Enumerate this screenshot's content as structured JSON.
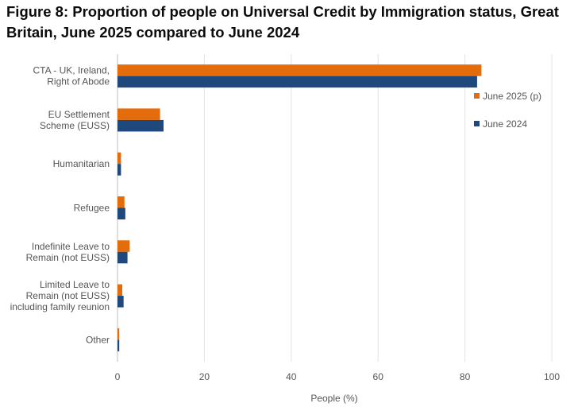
{
  "chart_data": {
    "type": "bar",
    "orientation": "horizontal",
    "title": "Figure 8: Proportion of people on Universal Credit by Immigration status, Great Britain, June 2025 compared to June 2024",
    "xlabel": "People (%)",
    "ylabel": "",
    "xlim": [
      0,
      100
    ],
    "xticks": [
      "0",
      "20",
      "40",
      "60",
      "80",
      "100"
    ],
    "grid": "vertical",
    "legend_position": "right",
    "categories": [
      [
        "CTA - UK, Ireland,",
        "Right of Abode"
      ],
      [
        "EU Settlement",
        "Scheme (EUSS)"
      ],
      [
        "Humanitarian"
      ],
      [
        "Refugee"
      ],
      [
        "Indefinite Leave to",
        "Remain (not EUSS)"
      ],
      [
        "Limited Leave to",
        "Remain (not EUSS)",
        "including family reunion"
      ],
      [
        "Other"
      ]
    ],
    "series": [
      {
        "name": "June 2025 (p)",
        "color": "#e46c0a",
        "values": [
          83.8,
          9.8,
          0.8,
          1.6,
          2.8,
          1.1,
          0.4
        ]
      },
      {
        "name": "June 2024",
        "color": "#1f497d",
        "values": [
          82.8,
          10.6,
          0.8,
          1.8,
          2.3,
          1.4,
          0.4
        ]
      }
    ]
  }
}
